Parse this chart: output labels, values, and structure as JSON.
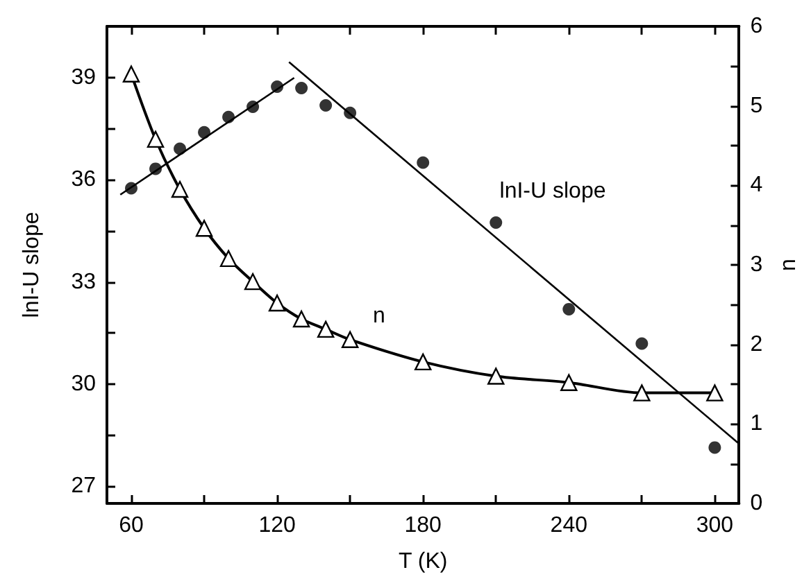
{
  "chart_data": {
    "type": "scatter",
    "xlabel": "T (K)",
    "ylabel": "lnI-U slope",
    "y2label": "n",
    "x": [
      60,
      70,
      80,
      90,
      100,
      110,
      120,
      130,
      140,
      150,
      180,
      210,
      240,
      270,
      300
    ],
    "series": [
      {
        "color": "#000000",
        "marker": "circle",
        "values": [
          35.75,
          36.32,
          36.91,
          37.39,
          37.84,
          38.14,
          38.73,
          38.69,
          38.18,
          37.96,
          36.5,
          34.74,
          32.2,
          31.19,
          28.14
        ]
      },
      {
        "type": "line",
        "axis": "y2",
        "color": "#000000",
        "marker": "triangle",
        "values": [
          5.4,
          4.58,
          3.95,
          3.46,
          3.08,
          2.79,
          2.52,
          2.32,
          2.19,
          2.06,
          1.78,
          1.6,
          1.52,
          1.39,
          1.39
        ]
      },
      {
        "type": "line",
        "color": "#000000",
        "marker": "none",
        "x": [
          55.5,
          127
        ],
        "values": [
          35.56,
          38.99
        ]
      },
      {
        "type": "line",
        "color": "#000000",
        "marker": "none",
        "x": [
          124.9,
          310
        ],
        "values": [
          39.45,
          28.25
        ]
      }
    ],
    "annotations": [
      "lnI-U slope",
      "n"
    ],
    "xlim": [
      50,
      310
    ],
    "xticks": [
      60,
      {
        "value": 90,
        "label": null
      },
      120,
      {
        "value": 150,
        "label": null
      },
      180,
      {
        "value": 210,
        "label": null
      },
      240,
      {
        "value": 270,
        "label": null
      },
      300
    ],
    "ylim": [
      26.5,
      40.5
    ],
    "yticks": [
      27,
      {
        "value": 28.5,
        "label": null
      },
      30,
      {
        "value": 31.5,
        "label": null
      },
      33,
      {
        "value": 34.5,
        "label": null
      },
      36,
      {
        "value": 37.5,
        "label": null
      },
      39
    ],
    "y2lim": [
      0,
      6
    ],
    "y2ticks": [
      0,
      {
        "value": 0.5,
        "label": null
      },
      1,
      {
        "value": 1.5,
        "label": null
      },
      2,
      {
        "value": 2.5,
        "label": null
      },
      3,
      {
        "value": 3.5,
        "label": null
      },
      4,
      {
        "value": 4.5,
        "label": null
      },
      5,
      {
        "value": 5.5,
        "label": null
      },
      6
    ],
    "grid": false
  }
}
